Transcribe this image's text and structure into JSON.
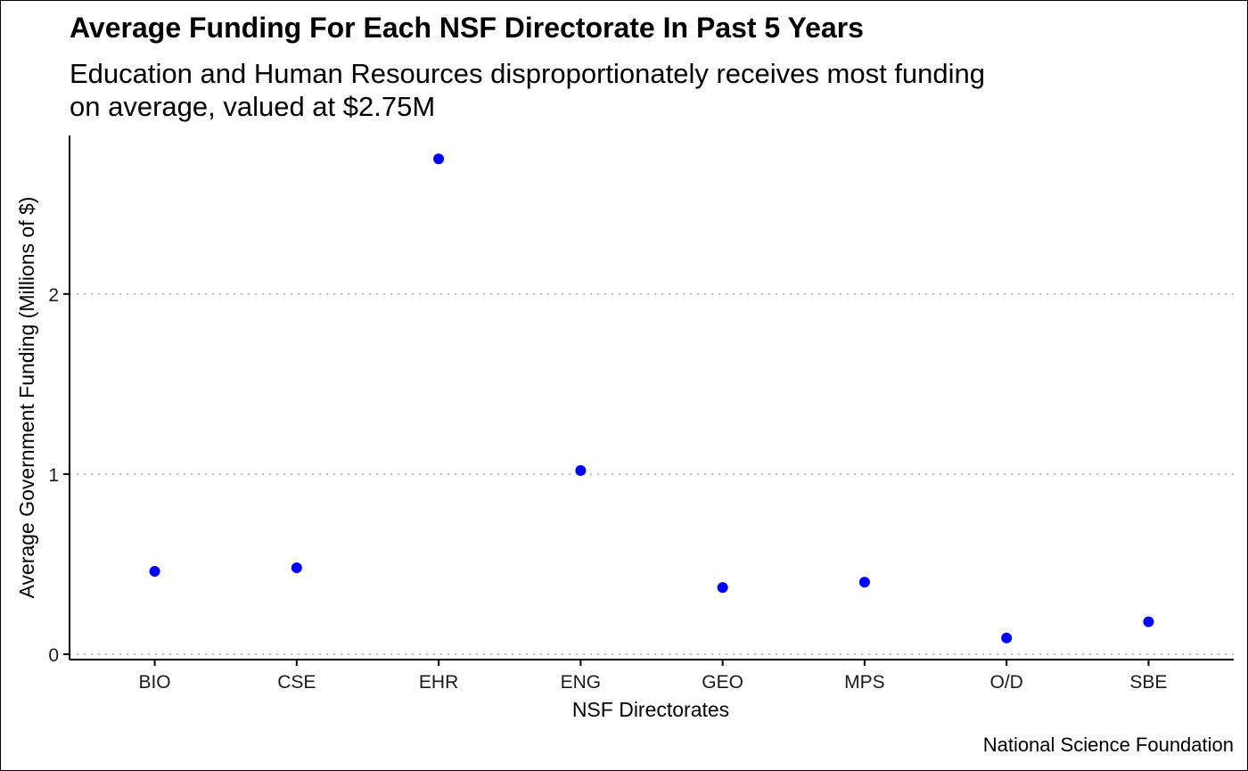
{
  "chart_data": {
    "type": "scatter",
    "title": "Average Funding For Each NSF Directorate In Past 5 Years",
    "subtitle": [
      "Education and Human Resources disproportionately receives most funding",
      "on average, valued at $2.75M"
    ],
    "xlabel": "NSF Directorates",
    "ylabel": "Average Government Funding (Millions of $)",
    "caption": "National Science Foundation",
    "categories": [
      "BIO",
      "CSE",
      "EHR",
      "ENG",
      "GEO",
      "MPS",
      "O/D",
      "SBE"
    ],
    "values": [
      0.46,
      0.48,
      2.75,
      1.02,
      0.37,
      0.4,
      0.09,
      0.18
    ],
    "yticks": [
      0,
      1,
      2
    ],
    "ylim": [
      -0.03,
      2.88
    ],
    "grid": "horizontal-dotted",
    "point_color": "#0000ff"
  }
}
